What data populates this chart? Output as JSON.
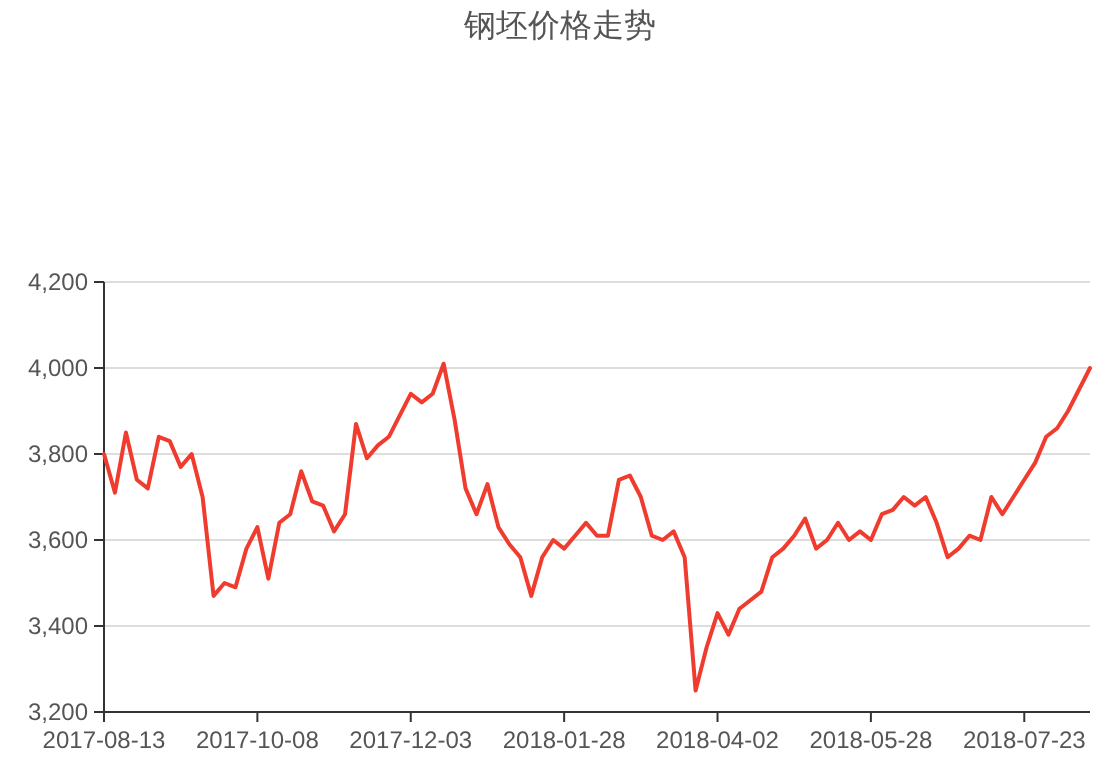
{
  "chart_data": {
    "type": "line",
    "title": "钢坯价格走势",
    "categories": [
      "2017-08-13",
      null,
      null,
      null,
      null,
      null,
      null,
      null,
      null,
      null,
      null,
      null,
      null,
      null,
      "2017-10-08",
      null,
      null,
      null,
      null,
      null,
      null,
      null,
      null,
      null,
      null,
      null,
      null,
      null,
      "2017-12-03",
      null,
      null,
      null,
      null,
      null,
      null,
      null,
      null,
      null,
      null,
      null,
      null,
      null,
      "2018-01-28",
      null,
      null,
      null,
      null,
      null,
      null,
      null,
      null,
      null,
      null,
      null,
      null,
      null,
      "2018-04-02",
      null,
      null,
      null,
      null,
      null,
      null,
      null,
      null,
      null,
      null,
      null,
      null,
      null,
      "2018-05-28",
      null,
      null,
      null,
      null,
      null,
      null,
      null,
      null,
      null,
      null,
      null,
      null,
      null,
      "2018-07-23",
      null,
      null,
      null,
      null,
      null,
      null
    ],
    "series": [
      {
        "color": "#f03c2f",
        "values": [
          3800,
          3710,
          3850,
          3740,
          3720,
          3840,
          3830,
          3770,
          3800,
          3700,
          3470,
          3500,
          3490,
          3580,
          3630,
          3510,
          3640,
          3660,
          3760,
          3690,
          3680,
          3620,
          3660,
          3870,
          3790,
          3820,
          3840,
          3890,
          3940,
          3920,
          3940,
          4010,
          3880,
          3720,
          3660,
          3730,
          3630,
          3590,
          3560,
          3470,
          3560,
          3600,
          3580,
          3610,
          3640,
          3610,
          3610,
          3740,
          3750,
          3700,
          3610,
          3600,
          3620,
          3560,
          3250,
          3350,
          3430,
          3380,
          3440,
          3460,
          3480,
          3560,
          3580,
          3610,
          3650,
          3580,
          3600,
          3640,
          3600,
          3620,
          3600,
          3660,
          3670,
          3700,
          3680,
          3700,
          3640,
          3560,
          3580,
          3610,
          3600,
          3700,
          3660,
          3700,
          3740,
          3780,
          3840,
          3860,
          3900,
          3950,
          4000
        ]
      }
    ],
    "ylim": [
      3200,
      4200
    ],
    "yticks": [
      {
        "value": 3200,
        "label": "3,200"
      },
      {
        "value": 3400,
        "label": "3,400"
      },
      {
        "value": 3600,
        "label": "3,600"
      },
      {
        "value": 3800,
        "label": "3,800"
      },
      {
        "value": 4000,
        "label": "4,000"
      },
      {
        "value": 4200,
        "label": "4,200"
      }
    ],
    "grid": "y",
    "line_style": "solid"
  }
}
